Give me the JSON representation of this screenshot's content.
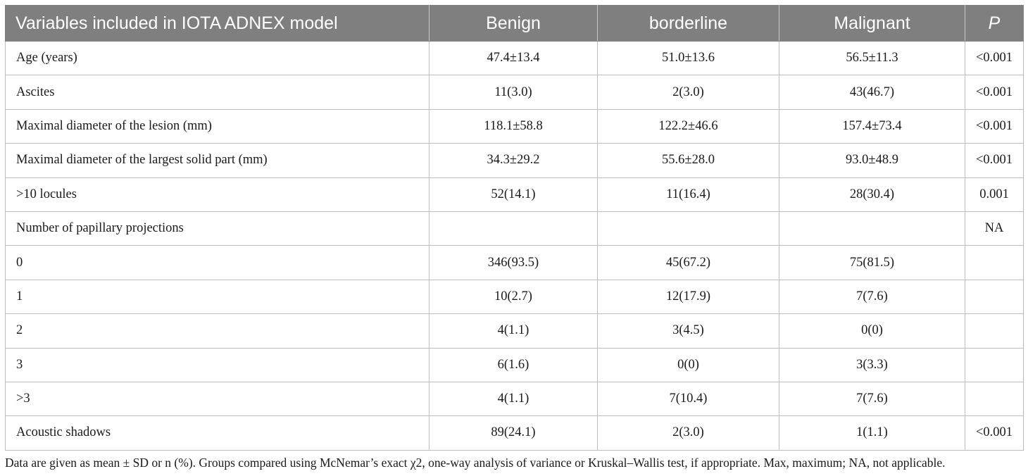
{
  "table": {
    "headers": [
      "Variables included in IOTA ADNEX model",
      "Benign",
      "borderline",
      "Malignant",
      "P"
    ],
    "rows": [
      [
        "Age (years)",
        "47.4±13.4",
        "51.0±13.6",
        "56.5±11.3",
        "<0.001"
      ],
      [
        "Ascites",
        "11(3.0)",
        "2(3.0)",
        "43(46.7)",
        "<0.001"
      ],
      [
        "Maximal diameter of the lesion (mm)",
        "118.1±58.8",
        "122.2±46.6",
        "157.4±73.4",
        "<0.001"
      ],
      [
        "Maximal diameter of the largest solid part (mm)",
        "34.3±29.2",
        "55.6±28.0",
        "93.0±48.9",
        "<0.001"
      ],
      [
        ">10 locules",
        "52(14.1)",
        "11(16.4)",
        "28(30.4)",
        "0.001"
      ],
      [
        "Number of papillary projections",
        "",
        "",
        "",
        "NA"
      ],
      [
        "0",
        "346(93.5)",
        "45(67.2)",
        "75(81.5)",
        ""
      ],
      [
        "1",
        "10(2.7)",
        "12(17.9)",
        "7(7.6)",
        ""
      ],
      [
        "2",
        "4(1.1)",
        "3(4.5)",
        "0(0)",
        ""
      ],
      [
        "3",
        "6(1.6)",
        "0(0)",
        "3(3.3)",
        ""
      ],
      [
        ">3",
        "4(1.1)",
        "7(10.4)",
        "7(7.6)",
        ""
      ],
      [
        "Acoustic shadows",
        "89(24.1)",
        "2(3.0)",
        "1(1.1)",
        "<0.001"
      ]
    ]
  },
  "footnote": "Data are given as mean ± SD or n (%). Groups compared using McNemar’s exact χ2, one-way analysis of variance or Kruskal–Wallis test, if appropriate. Max, maximum; NA, not applicable.",
  "colors": {
    "header_bg": "#7f7f7f",
    "header_text": "#ffffff",
    "grid_line": "#bdbdbd"
  }
}
